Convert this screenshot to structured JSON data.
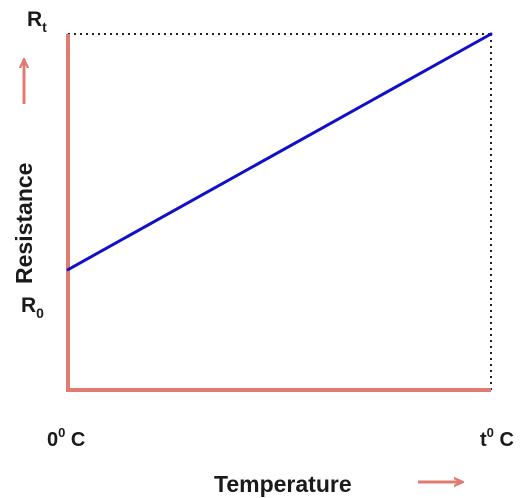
{
  "chart_data": {
    "type": "line",
    "xlabel": "Temperature",
    "ylabel": "Resistance",
    "x_ticks": [
      {
        "base": "0",
        "sup": "0",
        "suffix": " C"
      },
      {
        "base": "t",
        "sup": "0",
        "suffix": " C"
      }
    ],
    "y_ticks": [
      {
        "base": "R",
        "sub": "0"
      },
      {
        "base": "R",
        "sub": "t"
      }
    ],
    "x": [
      0,
      1
    ],
    "y": [
      0.305,
      1.0
    ],
    "xlim": [
      0,
      1
    ],
    "ylim": [
      -0.05,
      1.0
    ],
    "grid": false,
    "reference_lines": "dotted guides from R_t to the line end and down to t0 C",
    "colors": {
      "axis": "#e07b72",
      "line": "#1010c8",
      "guide": "#222222",
      "text": "#1a1a1a",
      "arrow": "#e07b72"
    }
  }
}
